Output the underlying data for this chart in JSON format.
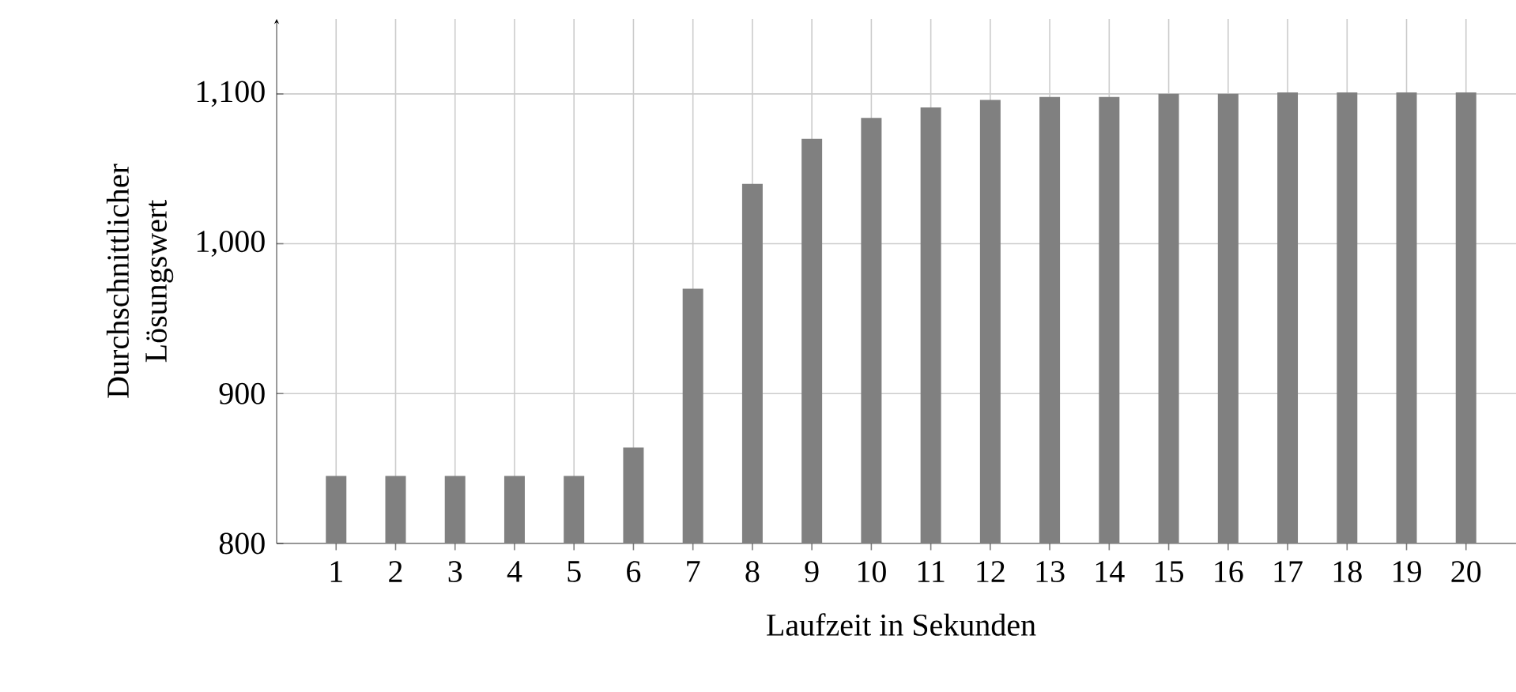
{
  "chart_data": {
    "type": "bar",
    "xlabel": "Laufzeit in Sekunden",
    "ylabel": "Durchschnittlicher Lösungswert",
    "categories": [
      "1",
      "2",
      "3",
      "4",
      "5",
      "6",
      "7",
      "8",
      "9",
      "10",
      "11",
      "12",
      "13",
      "14",
      "15",
      "16",
      "17",
      "18",
      "19",
      "20"
    ],
    "values": [
      845,
      845,
      845,
      845,
      845,
      864,
      970,
      1040,
      1070,
      1084,
      1091,
      1096,
      1098,
      1098,
      1100,
      1100,
      1101,
      1101,
      1101,
      1101
    ],
    "color": "#808080",
    "ylim": [
      800,
      1150
    ],
    "yticks": [
      800,
      900,
      {
        "value": 1000,
        "label": "1,000"
      },
      {
        "value": 1100,
        "label": "1,100"
      }
    ],
    "grid": true
  }
}
